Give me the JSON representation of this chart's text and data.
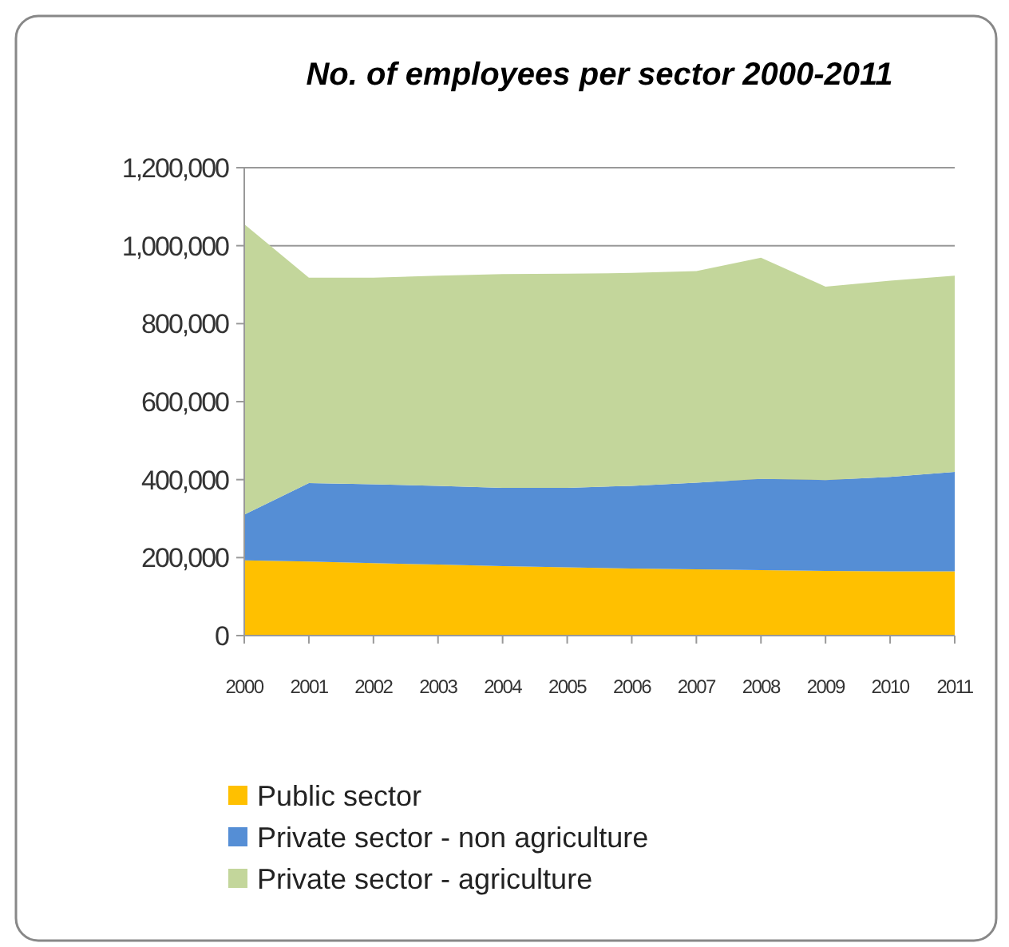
{
  "chart_data": {
    "type": "area",
    "title": "No. of employees per sector 2000-2011",
    "categories": [
      "2000",
      "2001",
      "2002",
      "2003",
      "2004",
      "2005",
      "2006",
      "2007",
      "2008",
      "2009",
      "2010",
      "2011"
    ],
    "stacked": true,
    "series": [
      {
        "name": "Public sector",
        "color": "#ffc000",
        "values": [
          193000,
          190000,
          186000,
          182000,
          178000,
          175000,
          172000,
          170000,
          168000,
          166000,
          165000,
          165000
        ]
      },
      {
        "name": "Private sector - non agriculture",
        "color": "#558ed5",
        "values": [
          117000,
          201000,
          202000,
          202000,
          201000,
          204000,
          212000,
          222000,
          234000,
          233000,
          242000,
          255000
        ]
      },
      {
        "name": "Private sector - agriculture",
        "color": "#c3d69b",
        "values": [
          745000,
          527000,
          530000,
          539000,
          548000,
          549000,
          546000,
          543000,
          567000,
          496000,
          503000,
          503000
        ]
      }
    ],
    "ylim": [
      0,
      1200000
    ],
    "yticks": [
      {
        "value": 0,
        "label": "0"
      },
      {
        "value": 200000,
        "label": "200,000"
      },
      {
        "value": 400000,
        "label": "400,000"
      },
      {
        "value": 600000,
        "label": "600,000"
      },
      {
        "value": 800000,
        "label": "800,000"
      },
      {
        "value": 1000000,
        "label": "1,000,000"
      },
      {
        "value": 1200000,
        "label": "1,200,000"
      }
    ],
    "grid": "y",
    "legend": "bottom"
  }
}
